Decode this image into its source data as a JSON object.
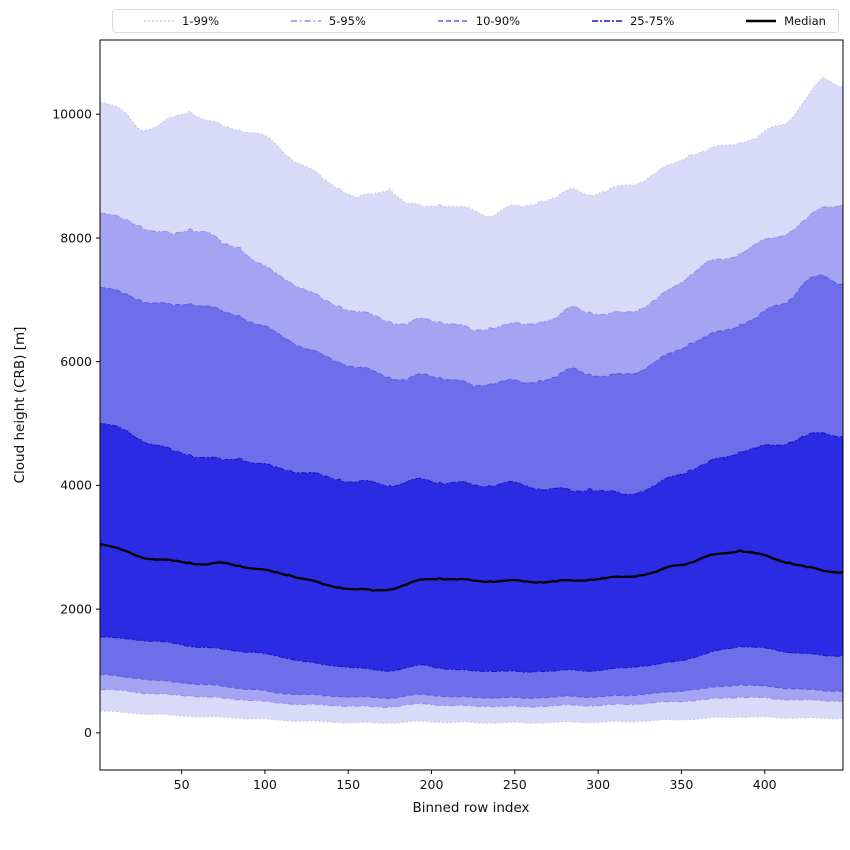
{
  "chart_data": {
    "type": "area",
    "title": "",
    "xlabel": "Binned row index",
    "ylabel": "Cloud height (CRB) [m]",
    "xlim": [
      1,
      447
    ],
    "ylim": [
      -600,
      11200
    ],
    "xticks": [
      50,
      100,
      150,
      200,
      250,
      300,
      350,
      400
    ],
    "yticks": [
      0,
      2000,
      4000,
      6000,
      8000,
      10000
    ],
    "grid": false,
    "legend_position": "top-outside",
    "x": [
      1,
      15,
      25,
      35,
      45,
      55,
      65,
      75,
      85,
      95,
      105,
      115,
      125,
      135,
      145,
      155,
      165,
      175,
      185,
      195,
      205,
      215,
      225,
      235,
      245,
      255,
      265,
      275,
      285,
      295,
      305,
      315,
      325,
      335,
      345,
      355,
      365,
      375,
      385,
      395,
      405,
      415,
      425,
      435,
      447
    ],
    "bands": [
      {
        "label": "1-99%",
        "fill": "#d9d9f8",
        "edge": "#c0c0f2",
        "dash": "1.5 2.5",
        "high": [
          10200,
          10050,
          9750,
          9800,
          9950,
          10050,
          9900,
          9800,
          9750,
          9700,
          9550,
          9300,
          9150,
          8950,
          8800,
          8650,
          8700,
          8800,
          8550,
          8500,
          8550,
          8500,
          8450,
          8350,
          8500,
          8500,
          8600,
          8650,
          8800,
          8700,
          8750,
          8850,
          8900,
          9050,
          9200,
          9350,
          9400,
          9500,
          9550,
          9600,
          9800,
          9900,
          10250,
          10600,
          10450
        ],
        "low": [
          350,
          330,
          310,
          300,
          280,
          270,
          260,
          250,
          240,
          230,
          210,
          200,
          190,
          180,
          170,
          165,
          160,
          160,
          175,
          185,
          175,
          170,
          165,
          165,
          165,
          160,
          165,
          170,
          175,
          170,
          175,
          180,
          190,
          200,
          210,
          220,
          235,
          250,
          260,
          255,
          250,
          245,
          240,
          235,
          240
        ]
      },
      {
        "label": "5-95%",
        "fill": "#a4a4f2",
        "edge": "#8e8eec",
        "dash": "6 3 1.5 3",
        "high": [
          8400,
          8300,
          8200,
          8100,
          8050,
          8150,
          8100,
          7900,
          7850,
          7600,
          7450,
          7300,
          7150,
          7000,
          6900,
          6800,
          6750,
          6650,
          6600,
          6700,
          6650,
          6600,
          6500,
          6550,
          6600,
          6600,
          6650,
          6700,
          6900,
          6800,
          6750,
          6800,
          6850,
          7000,
          7200,
          7400,
          7600,
          7650,
          7750,
          7900,
          8000,
          8100,
          8300,
          8500,
          8550
        ],
        "low": [
          700,
          680,
          650,
          630,
          610,
          600,
          580,
          560,
          540,
          520,
          490,
          470,
          460,
          450,
          440,
          430,
          420,
          420,
          450,
          470,
          450,
          440,
          430,
          430,
          430,
          420,
          430,
          440,
          450,
          440,
          450,
          460,
          470,
          490,
          500,
          520,
          540,
          560,
          580,
          570,
          550,
          540,
          530,
          520,
          520
        ]
      },
      {
        "label": "10-90%",
        "fill": "#6e6eea",
        "edge": "#5a5ae0",
        "dash": "5 3",
        "high": [
          7200,
          7100,
          7000,
          6950,
          6900,
          6950,
          6900,
          6800,
          6750,
          6600,
          6500,
          6350,
          6200,
          6100,
          6000,
          5900,
          5850,
          5750,
          5700,
          5800,
          5750,
          5700,
          5600,
          5650,
          5700,
          5650,
          5700,
          5750,
          5900,
          5800,
          5750,
          5800,
          5850,
          6000,
          6150,
          6300,
          6400,
          6500,
          6600,
          6700,
          6900,
          7000,
          7300,
          7400,
          7250
        ],
        "low": [
          950,
          900,
          880,
          850,
          820,
          800,
          780,
          750,
          720,
          700,
          650,
          630,
          620,
          600,
          590,
          580,
          570,
          560,
          600,
          620,
          600,
          580,
          570,
          570,
          570,
          560,
          570,
          580,
          590,
          580,
          590,
          600,
          620,
          640,
          660,
          700,
          720,
          750,
          780,
          760,
          740,
          720,
          700,
          680,
          680
        ]
      },
      {
        "label": "25-75%",
        "fill": "#2b2be3",
        "edge": "#1818c0",
        "dash": "6 2 2 2",
        "high": [
          5000,
          4900,
          4750,
          4650,
          4550,
          4500,
          4450,
          4400,
          4450,
          4350,
          4300,
          4250,
          4200,
          4150,
          4100,
          4050,
          4050,
          4000,
          4050,
          4100,
          4050,
          4050,
          4000,
          4000,
          4050,
          4000,
          3950,
          3950,
          3900,
          3950,
          3900,
          3850,
          3900,
          4000,
          4150,
          4250,
          4350,
          4450,
          4550,
          4600,
          4650,
          4700,
          4800,
          4850,
          4800
        ],
        "low": [
          1550,
          1520,
          1500,
          1480,
          1450,
          1400,
          1380,
          1350,
          1320,
          1300,
          1250,
          1200,
          1150,
          1100,
          1080,
          1050,
          1020,
          1000,
          1050,
          1100,
          1050,
          1020,
          1000,
          1000,
          1000,
          980,
          1000,
          1000,
          1020,
          1000,
          1020,
          1050,
          1080,
          1100,
          1150,
          1200,
          1280,
          1350,
          1400,
          1380,
          1350,
          1300,
          1280,
          1250,
          1250
        ]
      }
    ],
    "median": {
      "label": "Median",
      "color": "#000000",
      "width": 2.3,
      "values": [
        3050,
        2950,
        2850,
        2800,
        2780,
        2750,
        2720,
        2750,
        2700,
        2650,
        2600,
        2550,
        2480,
        2400,
        2350,
        2320,
        2300,
        2320,
        2400,
        2480,
        2500,
        2480,
        2460,
        2450,
        2460,
        2450,
        2440,
        2450,
        2460,
        2480,
        2500,
        2520,
        2550,
        2600,
        2700,
        2750,
        2850,
        2900,
        2950,
        2900,
        2820,
        2750,
        2680,
        2620,
        2600
      ]
    },
    "style": {
      "background": "#ffffff",
      "spine_color": "#000000",
      "roughness_m": {
        "band_high": 30,
        "band_low": 10,
        "median": 14
      }
    }
  }
}
